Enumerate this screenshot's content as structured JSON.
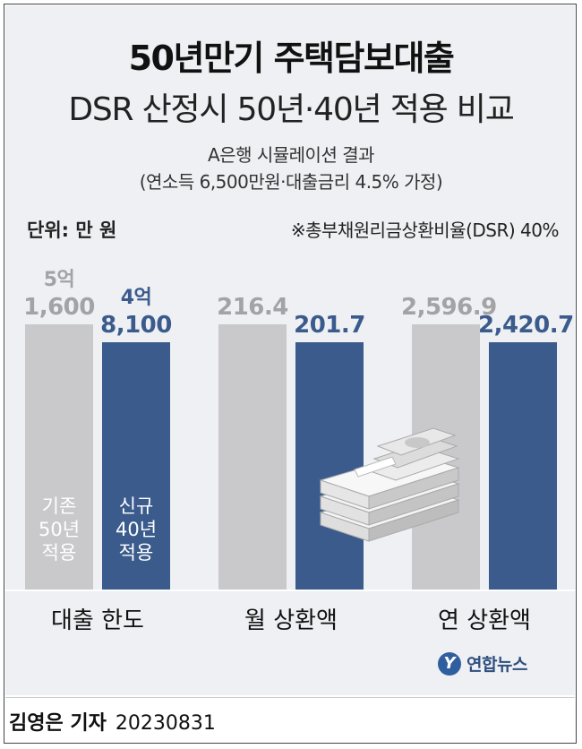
{
  "title": "50년만기 주택담보대출",
  "subtitle": "DSR 산정시 50년·40년 적용 비교",
  "note_line1": "A은행 시뮬레이션 결과",
  "note_line2": "(연소득 6,500만원·대출금리 4.5% 가정)",
  "unit_label": "단위: 만 원",
  "dsr_note": "※총부채원리금상환비율(DSR) 40%",
  "chart_data": {
    "type": "bar",
    "title": "50년만기 주택담보대출",
    "unit": "만 원",
    "categories": [
      "대출 한도",
      "월 상환액",
      "연 상환액"
    ],
    "series": [
      {
        "name": "기존 50년 적용",
        "color": "#c9c9cb",
        "values": [
          51600,
          216.4,
          2596.9
        ],
        "labels": [
          "5억\n1,600",
          "216.4",
          "2,596.9"
        ]
      },
      {
        "name": "신규 40년 적용",
        "color": "#3a5b8c",
        "values": [
          48100,
          201.7,
          2420.7
        ],
        "labels": [
          "4억\n8,100",
          "201.7",
          "2,420.7"
        ]
      }
    ]
  },
  "in_bar_labels": {
    "old": [
      "기존",
      "50년",
      "적용"
    ],
    "new": [
      "신규",
      "40년",
      "적용"
    ]
  },
  "logo_text": "연합뉴스",
  "reporter": "김영은 기자",
  "date": "20230831",
  "icon": "money-stack-icon"
}
